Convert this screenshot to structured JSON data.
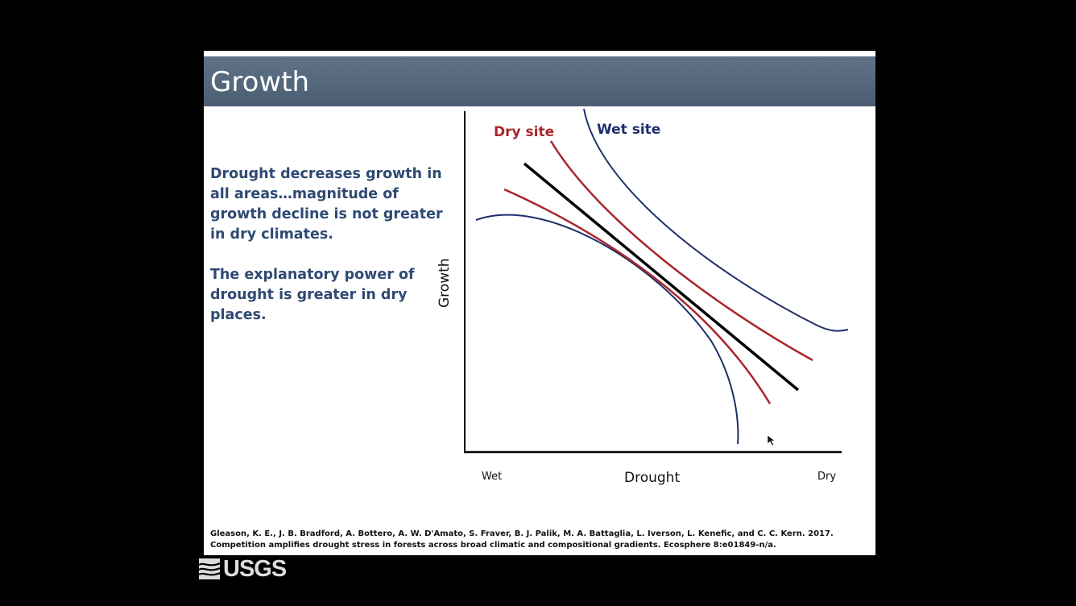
{
  "slide": {
    "title": "Growth",
    "paragraph_1": "Drought decreases growth in all areas…magnitude of growth decline is not greater in dry climates.",
    "paragraph_2": "The explanatory power of drought is greater in dry places.",
    "citation": "Gleason, K. E., J. B. Bradford, A. Bottero, A. W. D'Amato, S. Fraver, B. J. Palik, M. A. Battaglia, L. Iverson, L. Kenefic, and C. C. Kern. 2017. Competition amplifies drought stress in forests across broad climatic and compositional gradients. Ecosphere 8:e01849-n/a."
  },
  "diagram": {
    "y_axis_label": "Growth",
    "x_axis_label": "Drought",
    "x_left_label": "Wet",
    "x_right_label": "Dry",
    "dry_site_label": "Dry site",
    "wet_site_label": "Wet site",
    "colors": {
      "dry_site": "#a8262b",
      "wet_site": "#1f2f6b",
      "trend": "#000000",
      "title_bar": "#536679"
    }
  },
  "logo": {
    "text": "USGS"
  }
}
